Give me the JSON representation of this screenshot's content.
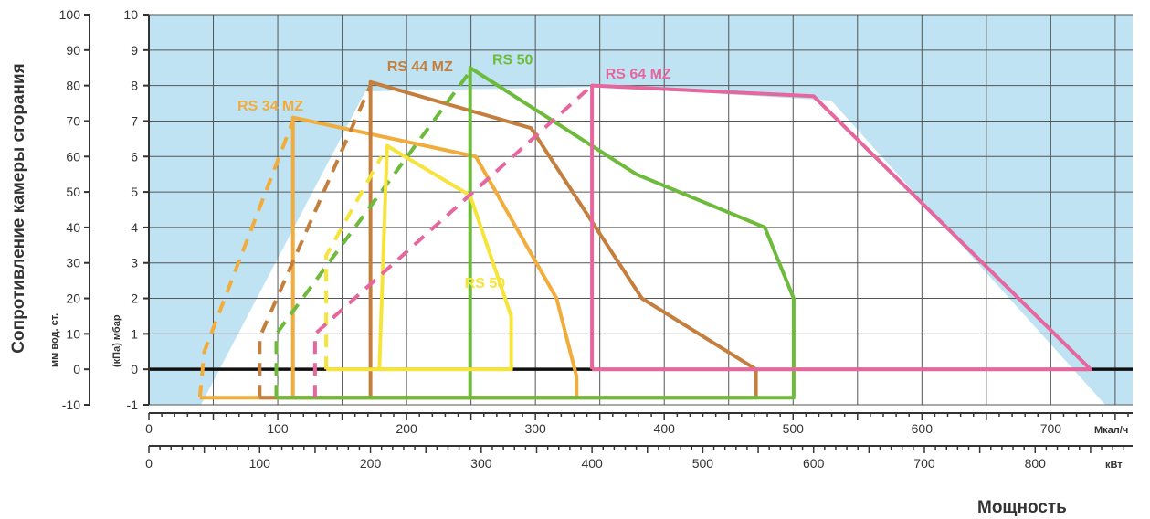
{
  "chart_data": {
    "type": "line",
    "axis_title_y": "Сопротивление камеры сгорания",
    "axis_title_x": "Мощность",
    "left_axis_label": "мм вод. ст.",
    "right_axis_label": "(кПа) мбар",
    "x_unit_top": "Мкал/ч",
    "x_unit_bottom": "кВт",
    "y_mm_ticks": [
      "100",
      "90",
      "80",
      "70",
      "60",
      "50",
      "40",
      "30",
      "20",
      "10",
      "0",
      "-10"
    ],
    "y_mbar_ticks": [
      "10",
      "9",
      "8",
      "7",
      "6",
      "5",
      "4",
      "3",
      "2",
      "1",
      "0",
      "-1"
    ],
    "x_top_ticks": [
      "0",
      "100",
      "200",
      "300",
      "400",
      "500",
      "600",
      "700"
    ],
    "x_bottom_ticks": [
      "0",
      "100",
      "200",
      "300",
      "400",
      "500",
      "600",
      "700",
      "800"
    ],
    "ylim_mbar": [
      -1,
      10
    ],
    "xlim_kW": [
      0,
      888
    ],
    "grid": true,
    "series": [
      {
        "name": "RS 34 MZ",
        "color": "#f2ac3c",
        "dashed": [
          [
            46,
            -0.8
          ],
          [
            50,
            0.5
          ],
          [
            130,
            7.0
          ]
        ],
        "solid": [
          [
            46,
            -0.8
          ],
          [
            386,
            -0.8
          ],
          [
            386,
            -0.2
          ],
          [
            368,
            2.0
          ],
          [
            295,
            6.0
          ],
          [
            130,
            7.1
          ],
          [
            130,
            -0.8
          ]
        ]
      },
      {
        "name": "RS 44 MZ",
        "color": "#c47f3e",
        "dashed": [
          [
            100,
            -0.8
          ],
          [
            100,
            0.9
          ],
          [
            200,
            8.0
          ]
        ],
        "solid": [
          [
            100,
            -0.8
          ],
          [
            548,
            -0.8
          ],
          [
            548,
            0.0
          ],
          [
            445,
            2.0
          ],
          [
            345,
            6.8
          ],
          [
            200,
            8.1
          ],
          [
            200,
            -0.8
          ]
        ]
      },
      {
        "name": "RS 50",
        "color": "#6ebb3c",
        "dashed": [
          [
            115,
            -0.8
          ],
          [
            115,
            1.0
          ],
          [
            290,
            8.4
          ]
        ],
        "solid": [
          [
            115,
            -0.8
          ],
          [
            582,
            -0.8
          ],
          [
            582,
            2.0
          ],
          [
            556,
            4.0
          ],
          [
            440,
            5.5
          ],
          [
            290,
            8.5
          ],
          [
            290,
            -0.8
          ]
        ]
      },
      {
        "name": "RS 50",
        "color": "#f7e43a",
        "dashed": [
          [
            160,
            0.0
          ],
          [
            160,
            3.2
          ],
          [
            210,
            6.0
          ]
        ],
        "solid": [
          [
            160,
            0.0
          ],
          [
            327,
            0.0
          ],
          [
            327,
            1.5
          ],
          [
            290,
            4.9
          ],
          [
            215,
            6.3
          ],
          [
            208,
            0.0
          ]
        ]
      },
      {
        "name": "RS 64 MZ",
        "color": "#e5679d",
        "dashed": [
          [
            150,
            -0.8
          ],
          [
            150,
            1.0
          ],
          [
            400,
            8.0
          ]
        ],
        "solid": [
          [
            400,
            0.0
          ],
          [
            400,
            8.0
          ],
          [
            600,
            7.7
          ],
          [
            850,
            0.0
          ],
          [
            400,
            0.0
          ]
        ]
      }
    ],
    "labels": [
      {
        "text": "RS 44 MZ",
        "color": "#c47f3e",
        "x": 215,
        "y": 8.4
      },
      {
        "text": "RS 50",
        "color": "#6ebb3c",
        "x": 310,
        "y": 8.6
      },
      {
        "text": "RS 64 MZ",
        "color": "#e5679d",
        "x": 412,
        "y": 8.2
      },
      {
        "text": "RS 34 MZ",
        "color": "#f2ac3c",
        "x": 80,
        "y": 7.3
      },
      {
        "text": "RS 50",
        "color": "#f7e43a",
        "x": 285,
        "y": 2.3
      }
    ]
  }
}
